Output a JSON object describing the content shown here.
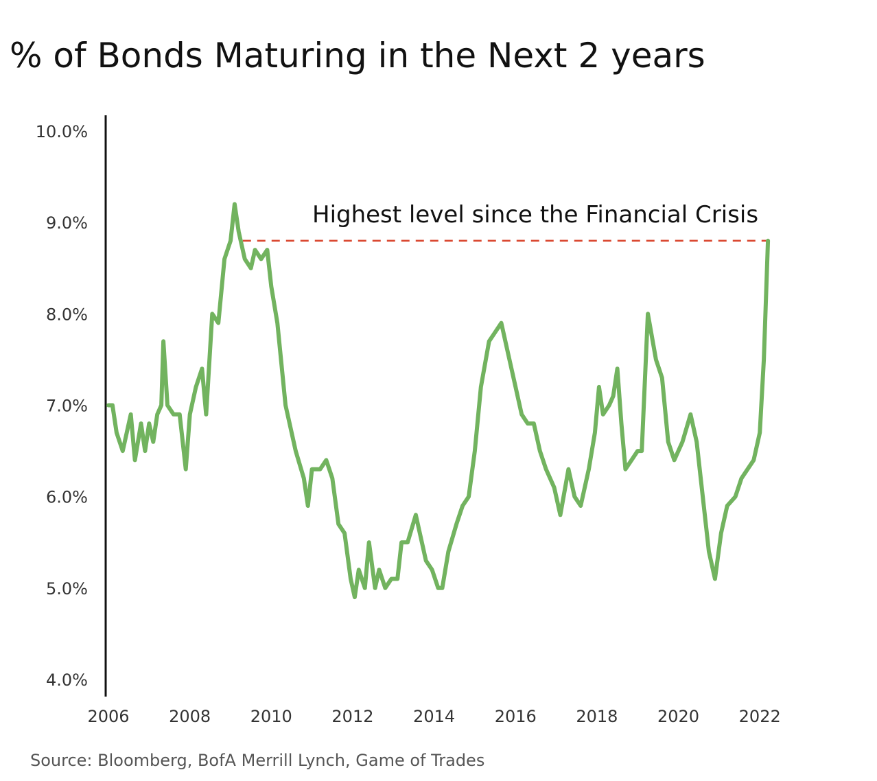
{
  "chart_data": {
    "type": "line",
    "title": "% of Bonds Maturing in the Next 2 years",
    "source": "Source: Bloomberg, BofA Merrill Lynch, Game of Trades",
    "annotation": "Highest level since the Financial Crisis",
    "xlim": [
      2006,
      2022.3
    ],
    "ylim": [
      4.0,
      10.0
    ],
    "x_ticks": [
      2006,
      2008,
      2010,
      2012,
      2014,
      2016,
      2018,
      2020,
      2022
    ],
    "y_ticks": [
      {
        "value": 4.0,
        "label": "4.0%"
      },
      {
        "value": 5.0,
        "label": "5.0%"
      },
      {
        "value": 6.0,
        "label": "6.0%"
      },
      {
        "value": 7.0,
        "label": "7.0%"
      },
      {
        "value": 8.0,
        "label": "8.0%"
      },
      {
        "value": 9.0,
        "label": "9.0%"
      },
      {
        "value": 10.0,
        "label": "10.0%"
      }
    ],
    "reference_line": {
      "value": 8.8,
      "x_start": 2009.3,
      "x_end": 2022.2,
      "color": "#d9432b",
      "style": "dashed"
    },
    "series": [
      {
        "color": "#72b35f",
        "points": [
          [
            2006.0,
            7.0
          ],
          [
            2006.1,
            7.0
          ],
          [
            2006.2,
            6.7
          ],
          [
            2006.35,
            6.5
          ],
          [
            2006.45,
            6.7
          ],
          [
            2006.55,
            6.9
          ],
          [
            2006.65,
            6.4
          ],
          [
            2006.8,
            6.8
          ],
          [
            2006.9,
            6.5
          ],
          [
            2007.0,
            6.8
          ],
          [
            2007.1,
            6.6
          ],
          [
            2007.2,
            6.9
          ],
          [
            2007.3,
            7.0
          ],
          [
            2007.35,
            7.7
          ],
          [
            2007.45,
            7.0
          ],
          [
            2007.6,
            6.9
          ],
          [
            2007.75,
            6.9
          ],
          [
            2007.9,
            6.3
          ],
          [
            2008.0,
            6.9
          ],
          [
            2008.15,
            7.2
          ],
          [
            2008.3,
            7.4
          ],
          [
            2008.4,
            6.9
          ],
          [
            2008.55,
            8.0
          ],
          [
            2008.7,
            7.9
          ],
          [
            2008.85,
            8.6
          ],
          [
            2009.0,
            8.8
          ],
          [
            2009.1,
            9.2
          ],
          [
            2009.2,
            8.9
          ],
          [
            2009.35,
            8.6
          ],
          [
            2009.5,
            8.5
          ],
          [
            2009.6,
            8.7
          ],
          [
            2009.75,
            8.6
          ],
          [
            2009.9,
            8.7
          ],
          [
            2010.0,
            8.3
          ],
          [
            2010.15,
            7.9
          ],
          [
            2010.35,
            7.0
          ],
          [
            2010.6,
            6.5
          ],
          [
            2010.8,
            6.2
          ],
          [
            2010.9,
            5.9
          ],
          [
            2011.0,
            6.3
          ],
          [
            2011.2,
            6.3
          ],
          [
            2011.35,
            6.4
          ],
          [
            2011.5,
            6.2
          ],
          [
            2011.65,
            5.7
          ],
          [
            2011.8,
            5.6
          ],
          [
            2011.95,
            5.1
          ],
          [
            2012.05,
            4.9
          ],
          [
            2012.15,
            5.2
          ],
          [
            2012.3,
            5.0
          ],
          [
            2012.4,
            5.5
          ],
          [
            2012.55,
            5.0
          ],
          [
            2012.65,
            5.2
          ],
          [
            2012.8,
            5.0
          ],
          [
            2012.95,
            5.1
          ],
          [
            2013.1,
            5.1
          ],
          [
            2013.2,
            5.5
          ],
          [
            2013.35,
            5.5
          ],
          [
            2013.55,
            5.8
          ],
          [
            2013.65,
            5.6
          ],
          [
            2013.8,
            5.3
          ],
          [
            2013.95,
            5.2
          ],
          [
            2014.1,
            5.0
          ],
          [
            2014.2,
            5.0
          ],
          [
            2014.35,
            5.4
          ],
          [
            2014.55,
            5.7
          ],
          [
            2014.7,
            5.9
          ],
          [
            2014.85,
            6.0
          ],
          [
            2015.0,
            6.5
          ],
          [
            2015.15,
            7.2
          ],
          [
            2015.35,
            7.7
          ],
          [
            2015.5,
            7.8
          ],
          [
            2015.65,
            7.9
          ],
          [
            2015.8,
            7.6
          ],
          [
            2016.0,
            7.2
          ],
          [
            2016.15,
            6.9
          ],
          [
            2016.3,
            6.8
          ],
          [
            2016.45,
            6.8
          ],
          [
            2016.6,
            6.5
          ],
          [
            2016.75,
            6.3
          ],
          [
            2016.95,
            6.1
          ],
          [
            2017.1,
            5.8
          ],
          [
            2017.3,
            6.3
          ],
          [
            2017.45,
            6.0
          ],
          [
            2017.6,
            5.9
          ],
          [
            2017.8,
            6.3
          ],
          [
            2017.95,
            6.7
          ],
          [
            2018.05,
            7.2
          ],
          [
            2018.15,
            6.9
          ],
          [
            2018.3,
            7.0
          ],
          [
            2018.4,
            7.1
          ],
          [
            2018.5,
            7.4
          ],
          [
            2018.6,
            6.8
          ],
          [
            2018.7,
            6.3
          ],
          [
            2018.85,
            6.4
          ],
          [
            2019.0,
            6.5
          ],
          [
            2019.1,
            6.5
          ],
          [
            2019.25,
            8.0
          ],
          [
            2019.45,
            7.5
          ],
          [
            2019.6,
            7.3
          ],
          [
            2019.75,
            6.6
          ],
          [
            2019.9,
            6.4
          ],
          [
            2020.1,
            6.6
          ],
          [
            2020.3,
            6.9
          ],
          [
            2020.45,
            6.6
          ],
          [
            2020.6,
            6.0
          ],
          [
            2020.75,
            5.4
          ],
          [
            2020.9,
            5.1
          ],
          [
            2021.05,
            5.6
          ],
          [
            2021.2,
            5.9
          ],
          [
            2021.4,
            6.0
          ],
          [
            2021.55,
            6.2
          ],
          [
            2021.7,
            6.3
          ],
          [
            2021.85,
            6.4
          ],
          [
            2022.0,
            6.7
          ],
          [
            2022.1,
            7.5
          ],
          [
            2022.2,
            8.8
          ]
        ]
      }
    ]
  }
}
